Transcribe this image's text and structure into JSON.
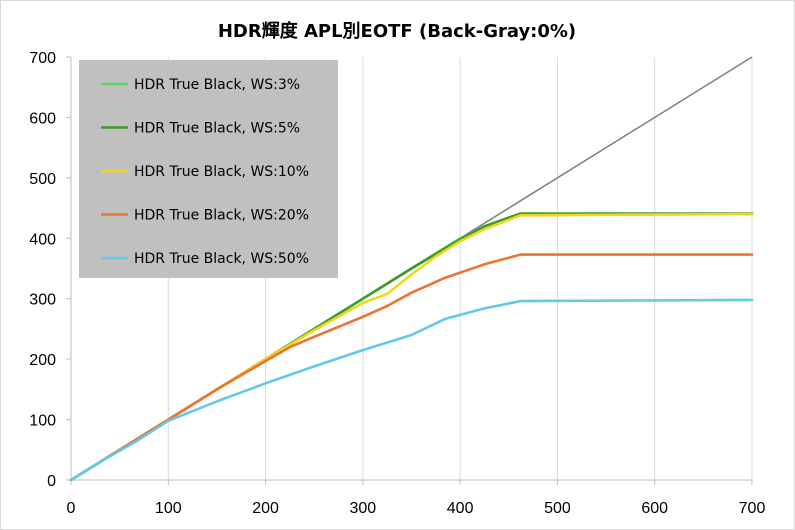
{
  "chart_data": {
    "type": "line",
    "title": "HDR輝度 APL別EOTF (Back-Gray:0%)",
    "xlim": [
      0,
      700
    ],
    "ylim": [
      0,
      700
    ],
    "x_ticks": [
      0,
      100,
      200,
      300,
      400,
      500,
      600,
      700
    ],
    "y_ticks": [
      0,
      100,
      200,
      300,
      400,
      500,
      600,
      700
    ],
    "grid": "vertical",
    "legend_position": "top-left",
    "reference_line": {
      "color": "#808080",
      "points": [
        [
          0,
          0
        ],
        [
          700,
          700
        ]
      ]
    },
    "series": [
      {
        "name": "HDR True Black, WS:3%",
        "color": "#5ed35e",
        "points": [
          [
            0,
            0
          ],
          [
            30,
            30
          ],
          [
            67,
            67
          ],
          [
            100,
            100
          ],
          [
            150,
            150
          ],
          [
            200,
            200
          ],
          [
            250,
            250
          ],
          [
            300,
            300
          ],
          [
            350,
            350
          ],
          [
            400,
            400
          ],
          [
            425,
            418
          ],
          [
            462,
            440
          ],
          [
            700,
            440
          ]
        ]
      },
      {
        "name": "HDR True Black, WS:5%",
        "color": "#3f9a2c",
        "points": [
          [
            0,
            0
          ],
          [
            30,
            30
          ],
          [
            67,
            67
          ],
          [
            100,
            100
          ],
          [
            150,
            150
          ],
          [
            200,
            200
          ],
          [
            250,
            250
          ],
          [
            300,
            300
          ],
          [
            350,
            350
          ],
          [
            400,
            398
          ],
          [
            425,
            420
          ],
          [
            462,
            441
          ],
          [
            700,
            441
          ]
        ]
      },
      {
        "name": "HDR True Black, WS:10%",
        "color": "#f2d61c",
        "points": [
          [
            0,
            0
          ],
          [
            30,
            30
          ],
          [
            67,
            67
          ],
          [
            100,
            100
          ],
          [
            150,
            150
          ],
          [
            200,
            200
          ],
          [
            250,
            248
          ],
          [
            300,
            293
          ],
          [
            325,
            308
          ],
          [
            350,
            340
          ],
          [
            375,
            370
          ],
          [
            400,
            395
          ],
          [
            425,
            415
          ],
          [
            462,
            438
          ],
          [
            700,
            440
          ]
        ]
      },
      {
        "name": "HDR True Black, WS:20%",
        "color": "#ed7330",
        "points": [
          [
            0,
            0
          ],
          [
            30,
            30
          ],
          [
            67,
            67
          ],
          [
            100,
            100
          ],
          [
            150,
            150
          ],
          [
            200,
            197
          ],
          [
            225,
            220
          ],
          [
            250,
            237
          ],
          [
            300,
            270
          ],
          [
            325,
            288
          ],
          [
            350,
            310
          ],
          [
            385,
            335
          ],
          [
            425,
            357
          ],
          [
            462,
            373
          ],
          [
            700,
            373
          ]
        ]
      },
      {
        "name": "HDR True Black, WS:50%",
        "color": "#63c8ea",
        "points": [
          [
            0,
            0
          ],
          [
            30,
            30
          ],
          [
            67,
            64
          ],
          [
            100,
            98
          ],
          [
            150,
            130
          ],
          [
            200,
            160
          ],
          [
            250,
            188
          ],
          [
            300,
            215
          ],
          [
            350,
            240
          ],
          [
            385,
            267
          ],
          [
            425,
            284
          ],
          [
            462,
            296
          ],
          [
            700,
            298
          ]
        ]
      }
    ]
  }
}
